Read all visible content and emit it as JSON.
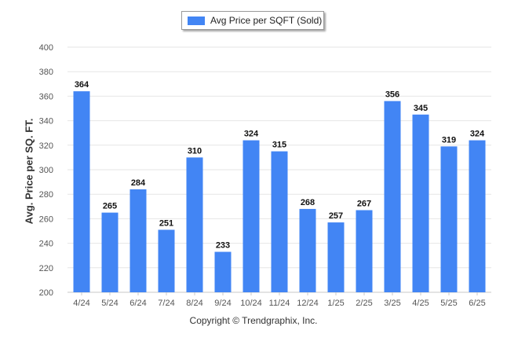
{
  "legend": {
    "label": "Avg Price per SQFT (Sold)"
  },
  "footer": {
    "text": "Copyright © Trendgraphix, Inc."
  },
  "colors": {
    "bar": "#4285f4",
    "grid": "#e6e6e6",
    "axis": "#c8c8c8",
    "tick_text": "#555555",
    "label_text": "#111111"
  },
  "chart_data": {
    "type": "bar",
    "title": "",
    "xlabel": "",
    "ylabel": "Avg. Price per SQ. FT.",
    "categories": [
      "4/24",
      "5/24",
      "6/24",
      "7/24",
      "8/24",
      "9/24",
      "10/24",
      "11/24",
      "12/24",
      "1/25",
      "2/25",
      "3/25",
      "4/25",
      "5/25",
      "6/25"
    ],
    "series": [
      {
        "name": "Avg Price per SQFT (Sold)",
        "values": [
          364,
          265,
          284,
          251,
          310,
          233,
          324,
          315,
          268,
          257,
          267,
          356,
          345,
          319,
          324
        ]
      }
    ],
    "ylim": [
      200,
      400
    ],
    "yticks": [
      200,
      220,
      240,
      260,
      280,
      300,
      320,
      340,
      360,
      380,
      400
    ],
    "grid": true,
    "legend_position": "top-center",
    "data_labels": true
  }
}
